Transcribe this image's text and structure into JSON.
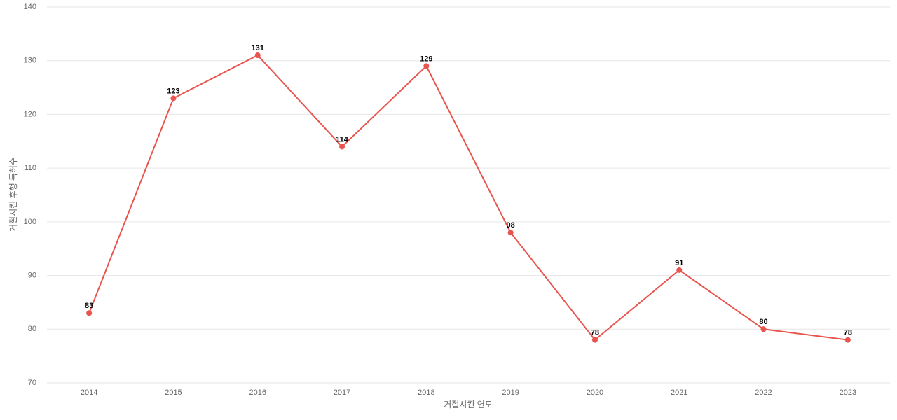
{
  "chart_data": {
    "type": "line",
    "x_label": "거절시킨 연도",
    "y_label": "거절시킨 후행 특허수",
    "categories": [
      "2014",
      "2015",
      "2016",
      "2017",
      "2018",
      "2019",
      "2020",
      "2021",
      "2022",
      "2023"
    ],
    "series": [
      {
        "name": "거절시킨 후행 특허수",
        "color": "#e8554e",
        "values": [
          83,
          123,
          131,
          114,
          129,
          98,
          78,
          91,
          80,
          78
        ]
      }
    ],
    "ylim": [
      70,
      140
    ],
    "yticks": [
      70,
      80,
      90,
      100,
      110,
      120,
      130,
      140
    ],
    "grid": true
  }
}
